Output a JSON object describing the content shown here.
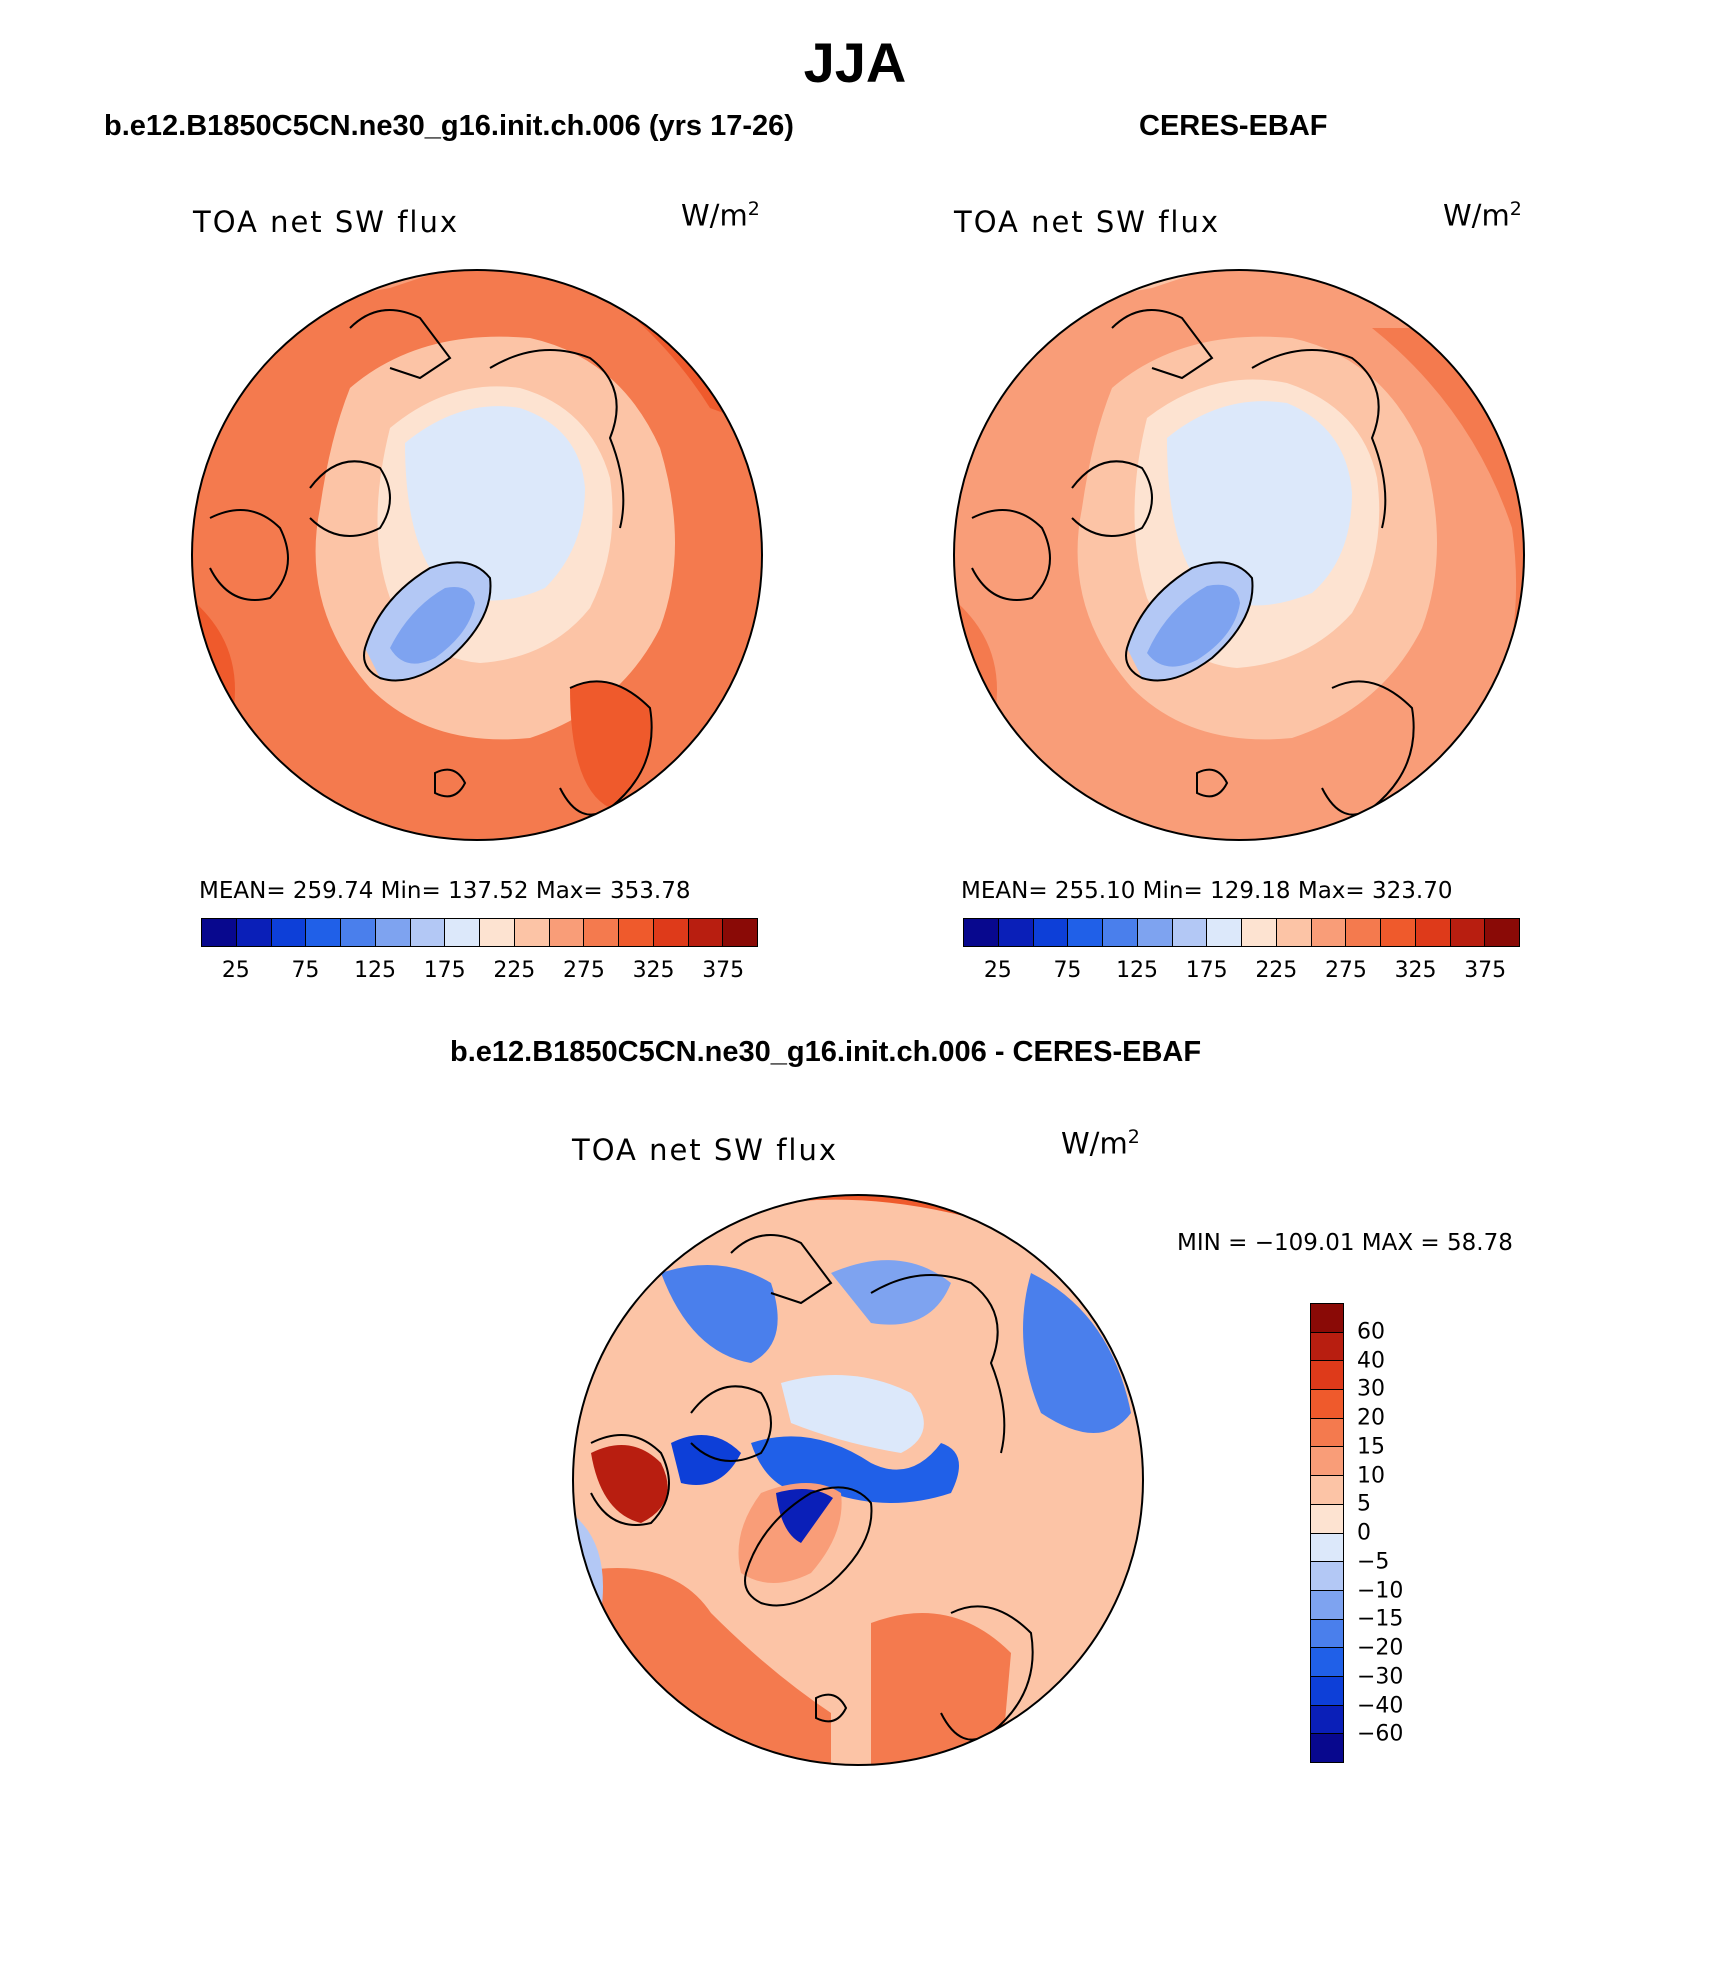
{
  "main_title": "JJA",
  "panels": [
    {
      "title": "b.e12.B1850C5CN.ne30_g16.init.ch.006 (yrs 17-26)",
      "variable": "TOA net SW flux",
      "units_base": "W/m",
      "units_sup": "2",
      "stats": "MEAN= 259.74   Min= 137.52   Max= 353.78"
    },
    {
      "title": "CERES-EBAF",
      "variable": "TOA net SW flux",
      "units_base": "W/m",
      "units_sup": "2",
      "stats": "MEAN= 255.10   Min= 129.18   Max= 323.70"
    },
    {
      "title": "b.e12.B1850C5CN.ne30_g16.init.ch.006 - CERES-EBAF",
      "variable": "TOA net SW flux",
      "units_base": "W/m",
      "units_sup": "2",
      "stats": "MIN = −109.01 MAX =  58.78"
    }
  ],
  "colorbar_top": {
    "tick_labels": [
      "25",
      "75",
      "125",
      "175",
      "225",
      "275",
      "325",
      "375"
    ],
    "colors": [
      "#08088e",
      "#0a1fb8",
      "#0d3fd8",
      "#2060e8",
      "#4a7fec",
      "#7ea3f0",
      "#b3c8f5",
      "#dce8fa",
      "#fde3d1",
      "#fcc4a6",
      "#f99d78",
      "#f47a4e",
      "#ef5a2c",
      "#de3a1a",
      "#b81e10",
      "#8a0a06"
    ]
  },
  "colorbar_diff": {
    "tick_labels": [
      "60",
      "40",
      "30",
      "20",
      "15",
      "10",
      "5",
      "0",
      "−5",
      "−10",
      "−15",
      "−20",
      "−30",
      "−40",
      "−60"
    ],
    "colors": [
      "#8a0a06",
      "#b81e10",
      "#de3a1a",
      "#ef5a2c",
      "#f47a4e",
      "#f99d78",
      "#fcc4a6",
      "#fde3d1",
      "#dce8fa",
      "#b3c8f5",
      "#7ea3f0",
      "#4a7fec",
      "#2060e8",
      "#0d3fd8",
      "#0a1fb8",
      "#08088e"
    ]
  }
}
